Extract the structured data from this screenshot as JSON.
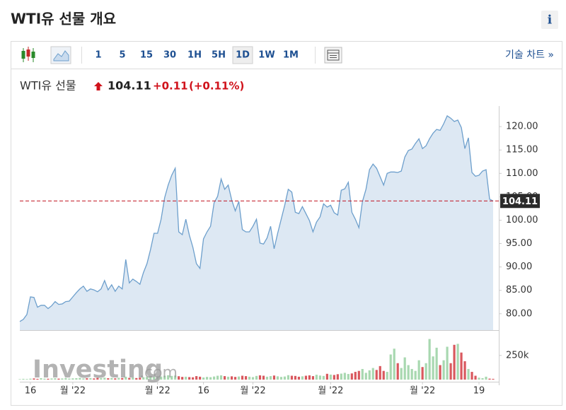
{
  "header": {
    "title": "WTI유 선물 개요",
    "info": "i"
  },
  "toolbar": {
    "intervals": [
      "1",
      "5",
      "15",
      "30",
      "1H",
      "5H",
      "1D",
      "1W",
      "1M"
    ],
    "link": "기술 차트 »"
  },
  "quote": {
    "name": "WTI유 선물",
    "change": "+0.11",
    "change_pct": "(+0.11%)"
  },
  "watermark": [
    "Investing",
    ".com"
  ],
  "chart_data": {
    "type": "line",
    "categories": [
      null,
      null,
      null,
      "16",
      null,
      null,
      null,
      null,
      null,
      null,
      null,
      null,
      null,
      null,
      null,
      "월 '22",
      null,
      null,
      null,
      null,
      null,
      null,
      null,
      null,
      null,
      null,
      null,
      null,
      null,
      null,
      null,
      null,
      null,
      null,
      null,
      null,
      null,
      null,
      null,
      "월 '22",
      null,
      null,
      null,
      null,
      null,
      null,
      null,
      null,
      null,
      null,
      null,
      null,
      "16",
      null,
      null,
      null,
      null,
      null,
      null,
      null,
      null,
      null,
      null,
      null,
      null,
      null,
      "월 '22",
      null,
      null,
      null,
      null,
      null,
      null,
      null,
      null,
      null,
      null,
      null,
      null,
      null,
      null,
      null,
      null,
      null,
      null,
      null,
      null,
      null,
      "월 '22",
      null,
      null,
      null,
      null,
      null,
      null,
      null,
      null,
      null,
      null,
      null,
      null,
      null,
      null,
      null,
      null,
      null,
      null,
      null,
      null,
      null,
      null,
      null,
      null,
      null,
      "월 '22",
      null,
      null,
      null,
      null,
      null,
      null,
      null,
      null,
      null,
      null,
      null,
      null,
      null,
      null,
      null,
      "19",
      null,
      null,
      null,
      null
    ],
    "series": [
      {
        "color": "#6d9fcc",
        "fill": "#dde8f3",
        "values": [
          78.34,
          78.8,
          79.85,
          83.6,
          83.5,
          81.4,
          81.8,
          81.8,
          81.1,
          81.7,
          82.6,
          82.0,
          82.1,
          82.6,
          82.7,
          83.6,
          84.5,
          85.3,
          85.9,
          84.8,
          85.3,
          85.1,
          84.7,
          85.3,
          87.1,
          85.1,
          86.2,
          84.8,
          85.9,
          85.3,
          91.6,
          86.6,
          87.4,
          86.9,
          86.3,
          88.8,
          90.7,
          93.7,
          97.2,
          97.2,
          100.2,
          104.8,
          107.5,
          109.6,
          111.1,
          97.5,
          96.9,
          100.2,
          96.8,
          94.2,
          90.7,
          89.7,
          96.0,
          97.5,
          98.7,
          103.7,
          105.1,
          108.8,
          106.6,
          107.5,
          104.3,
          102.0,
          104.0,
          98.0,
          97.5,
          97.5,
          98.7,
          100.2,
          95.1,
          94.9,
          96.2,
          98.7,
          93.9,
          97.2,
          100.2,
          103.2,
          106.6,
          106.0,
          101.7,
          101.4,
          102.9,
          101.4,
          99.9,
          97.5,
          99.6,
          100.7,
          103.5,
          102.8,
          103.2,
          101.6,
          101.1,
          106.4,
          106.7,
          108.1,
          101.7,
          100.2,
          98.4,
          104.0,
          106.6,
          110.8,
          112.0,
          111.1,
          109.3,
          107.5,
          110.0,
          110.3,
          110.3,
          110.2,
          110.5,
          113.5,
          114.9,
          115.2,
          116.4,
          117.4,
          115.3,
          115.9,
          117.4,
          118.6,
          119.4,
          119.2,
          120.6,
          122.3,
          121.8,
          121.1,
          121.4,
          119.8,
          115.3,
          117.6,
          110.2,
          109.4,
          109.6,
          110.5,
          110.8,
          104.5,
          104.11
        ]
      }
    ],
    "ylim": [
      76.5,
      124.4
    ],
    "yticks": [
      {
        "value": 80,
        "label": "80.00"
      },
      {
        "value": 85,
        "label": "85.00"
      },
      {
        "value": 90,
        "label": "90.00"
      },
      {
        "value": 95,
        "label": "95.00"
      },
      {
        "value": 100,
        "label": "100.00"
      },
      {
        "value": 105,
        "label": "105.00"
      },
      {
        "value": 110,
        "label": "110.00"
      },
      {
        "value": 115,
        "label": "115.00"
      },
      {
        "value": 120,
        "label": "120.00"
      }
    ],
    "last_price": 104.11,
    "last_price_color": "#c0111f",
    "volume": {
      "type": "bar",
      "up_color": "#a8d8b0",
      "down_color": "#d9585e",
      "ylim": [
        0,
        490000
      ],
      "yticks": [
        {
          "value": 250000,
          "label": "250k"
        }
      ],
      "values": [
        5000,
        8000,
        6000,
        10000,
        12000,
        8000,
        15000,
        10000,
        9000,
        12000,
        14000,
        10000,
        12000,
        16000,
        11000,
        13000,
        15000,
        18000,
        12000,
        14000,
        16000,
        12000,
        18000,
        15000,
        20000,
        14000,
        17000,
        13000,
        19000,
        16000,
        30000,
        18000,
        22000,
        16000,
        20000,
        25000,
        28000,
        35000,
        30000,
        26000,
        32000,
        40000,
        45000,
        38000,
        42000,
        35000,
        28000,
        30000,
        26000,
        24000,
        36000,
        30000,
        22000,
        28000,
        25000,
        32000,
        40000,
        44000,
        36000,
        30000,
        34000,
        28000,
        32000,
        40000,
        36000,
        30000,
        26000,
        38000,
        44000,
        40000,
        30000,
        36000,
        42000,
        34000,
        28000,
        32000,
        46000,
        40000,
        38000,
        30000,
        34000,
        40000,
        44000,
        36000,
        50000,
        42000,
        38000,
        60000,
        52000,
        48000,
        56000,
        62000,
        70000,
        58000,
        64000,
        80000,
        90000,
        110000,
        70000,
        96000,
        120000,
        100000,
        140000,
        90000,
        80000,
        260000,
        320000,
        170000,
        120000,
        230000,
        150000,
        110000,
        90000,
        200000,
        130000,
        170000,
        420000,
        240000,
        330000,
        150000,
        200000,
        340000,
        170000,
        360000,
        370000,
        280000,
        190000,
        110000,
        80000,
        40000,
        20000,
        15000,
        30000,
        10000,
        8000
      ]
    }
  }
}
